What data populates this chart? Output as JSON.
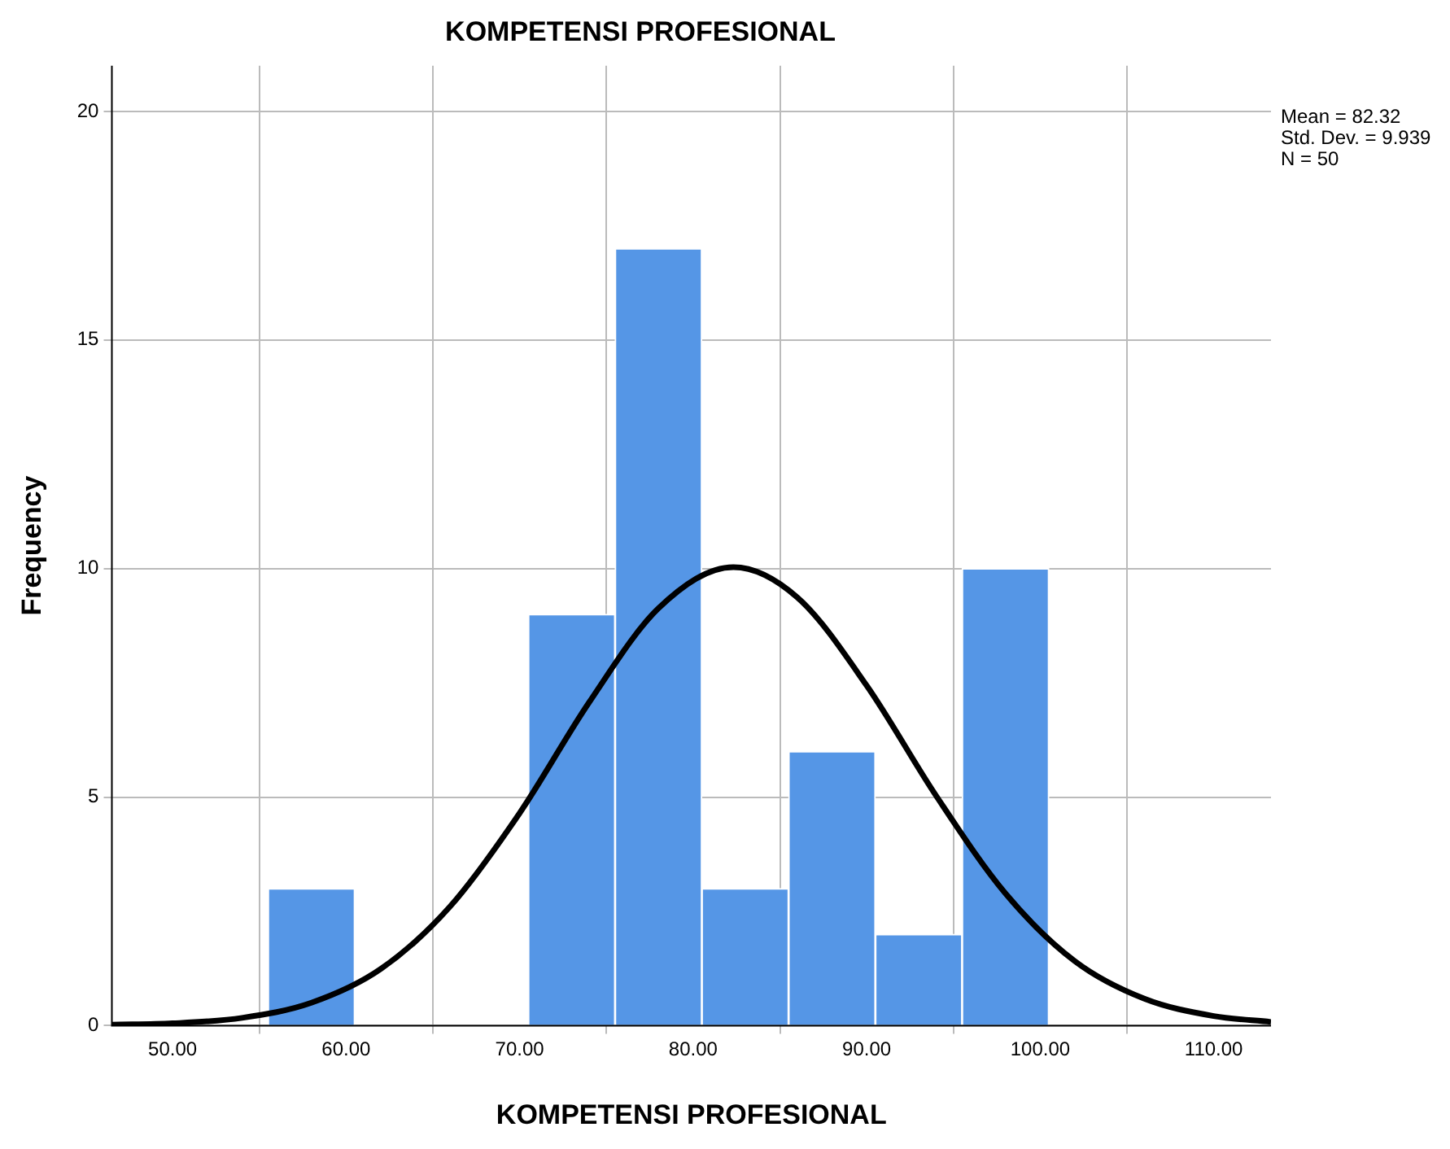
{
  "chart_data": {
    "type": "histogram",
    "title": "KOMPETENSI PROFESIONAL",
    "xlabel": "KOMPETENSI PROFESIONAL",
    "ylabel": "Frequency",
    "bins": [
      55.5,
      60.5,
      65.5,
      70.5,
      75.5,
      80.5,
      85.5,
      90.5,
      95.5,
      100.5
    ],
    "values": [
      3,
      0,
      0,
      9,
      17,
      3,
      6,
      2,
      10
    ],
    "color": "#5596e6",
    "series": [
      {
        "type": "line",
        "color": "#000000",
        "x": [
          46.5,
          50,
          54,
          58,
          62,
          66,
          70,
          74,
          78,
          82.32,
          86,
          90,
          94,
          98,
          102,
          106,
          110,
          113.3
        ],
        "values": [
          0.02,
          0.05,
          0.17,
          0.5,
          1.24,
          2.61,
          4.65,
          7.07,
          9.13,
          10.03,
          9.37,
          7.44,
          5.03,
          2.89,
          1.41,
          0.59,
          0.21,
          0.08
        ]
      }
    ],
    "xlim": [
      46.5,
      113.3
    ],
    "xticks": [
      {
        "value": 50,
        "label": "50.00"
      },
      {
        "value": 60,
        "label": "60.00"
      },
      {
        "value": 70,
        "label": "70.00"
      },
      {
        "value": 80,
        "label": "80.00"
      },
      {
        "value": 90,
        "label": "90.00"
      },
      {
        "value": 100,
        "label": "100.00"
      },
      {
        "value": 110,
        "label": "110.00"
      }
    ],
    "ylim": [
      0,
      21
    ],
    "yticks": [
      0,
      5,
      10,
      15,
      20
    ],
    "grid": true,
    "legend": false,
    "marker": "none",
    "annotations": [
      "Mean = 82.32",
      "Std. Dev. = 9.939",
      "N = 50"
    ]
  }
}
